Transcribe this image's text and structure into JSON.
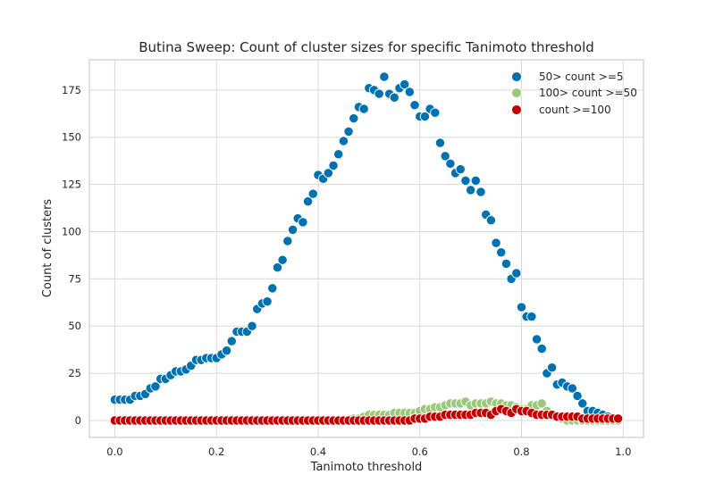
{
  "chart_data": {
    "type": "scatter",
    "title": "Butina Sweep: Count of cluster sizes for specific Tanimoto threshold",
    "xlabel": "Tanimoto threshold",
    "ylabel": "Count of clusters",
    "xlim": [
      -0.05,
      1.04
    ],
    "ylim": [
      -9,
      191
    ],
    "xticks": [
      0.0,
      0.2,
      0.4,
      0.6,
      0.8,
      1.0
    ],
    "xtick_labels": [
      "0.0",
      "0.2",
      "0.4",
      "0.6",
      "0.8",
      "1.0"
    ],
    "yticks": [
      0,
      25,
      50,
      75,
      100,
      125,
      150,
      175
    ],
    "ytick_labels": [
      "0",
      "25",
      "50",
      "75",
      "100",
      "125",
      "150",
      "175"
    ],
    "grid": true,
    "legend_position": "top-right",
    "x": [
      0.0,
      0.01,
      0.02,
      0.03,
      0.04,
      0.05,
      0.06,
      0.07,
      0.08,
      0.09,
      0.1,
      0.11,
      0.12,
      0.13,
      0.14,
      0.15,
      0.16,
      0.17,
      0.18,
      0.19,
      0.2,
      0.21,
      0.22,
      0.23,
      0.24,
      0.25,
      0.26,
      0.27,
      0.28,
      0.29,
      0.3,
      0.31,
      0.32,
      0.33,
      0.34,
      0.35,
      0.36,
      0.37,
      0.38,
      0.39,
      0.4,
      0.41,
      0.42,
      0.43,
      0.44,
      0.45,
      0.46,
      0.47,
      0.48,
      0.49,
      0.5,
      0.51,
      0.52,
      0.53,
      0.54,
      0.55,
      0.56,
      0.57,
      0.58,
      0.59,
      0.6,
      0.61,
      0.62,
      0.63,
      0.64,
      0.65,
      0.66,
      0.67,
      0.68,
      0.69,
      0.7,
      0.71,
      0.72,
      0.73,
      0.74,
      0.75,
      0.76,
      0.77,
      0.78,
      0.79,
      0.8,
      0.81,
      0.82,
      0.83,
      0.84,
      0.85,
      0.86,
      0.87,
      0.88,
      0.89,
      0.9,
      0.91,
      0.92,
      0.93,
      0.94,
      0.95,
      0.96,
      0.97,
      0.98,
      0.99
    ],
    "series": [
      {
        "name": "50> count >=5",
        "color": "#0072b2",
        "values": [
          11,
          11,
          11,
          11,
          13,
          13,
          14,
          17,
          18,
          22,
          22,
          24,
          26,
          26,
          27,
          29,
          32,
          32,
          33,
          33,
          33,
          35,
          37,
          42,
          47,
          47,
          47,
          50,
          59,
          62,
          63,
          70,
          81,
          85,
          95,
          101,
          107,
          105,
          116,
          120,
          130,
          128,
          131,
          135,
          141,
          148,
          153,
          160,
          166,
          165,
          176,
          175,
          173,
          182,
          173,
          171,
          176,
          178,
          174,
          167,
          161,
          161,
          165,
          163,
          147,
          140,
          136,
          131,
          133,
          127,
          122,
          127,
          121,
          109,
          106,
          94,
          89,
          83,
          75,
          78,
          60,
          55,
          55,
          43,
          38,
          25,
          28,
          19,
          20,
          18,
          17,
          13,
          9,
          5,
          5,
          4,
          3,
          2,
          1,
          1
        ]
      },
      {
        "name": "100> count >=50",
        "color": "#9bc97c",
        "values": [
          0,
          0,
          0,
          0,
          0,
          0,
          0,
          0,
          0,
          0,
          0,
          0,
          0,
          0,
          0,
          0,
          0,
          0,
          0,
          0,
          0,
          0,
          0,
          0,
          0,
          0,
          0,
          0,
          0,
          0,
          0,
          0,
          0,
          0,
          0,
          0,
          0,
          0,
          0,
          0,
          0,
          0,
          0,
          0,
          0,
          0,
          0,
          1,
          1,
          2,
          3,
          3,
          3,
          3,
          3,
          4,
          4,
          4,
          4,
          4,
          5,
          6,
          6,
          7,
          7,
          8,
          9,
          9,
          9,
          10,
          8,
          9,
          9,
          9,
          10,
          9,
          9,
          8,
          8,
          7,
          6,
          6,
          8,
          8,
          9,
          5,
          3,
          2,
          1,
          0,
          0,
          0,
          0,
          0,
          0,
          0,
          0,
          0,
          0,
          0
        ]
      },
      {
        "name": "count >=100",
        "color": "#c40000",
        "values": [
          0,
          0,
          0,
          0,
          0,
          0,
          0,
          0,
          0,
          0,
          0,
          0,
          0,
          0,
          0,
          0,
          0,
          0,
          0,
          0,
          0,
          0,
          0,
          0,
          0,
          0,
          0,
          0,
          0,
          0,
          0,
          0,
          0,
          0,
          0,
          0,
          0,
          0,
          0,
          0,
          0,
          0,
          0,
          0,
          0,
          0,
          0,
          0,
          0,
          0,
          0,
          0,
          0,
          0,
          0,
          0,
          0,
          0,
          0,
          1,
          1,
          1,
          2,
          2,
          2,
          3,
          3,
          3,
          3,
          3,
          3,
          4,
          4,
          4,
          3,
          5,
          6,
          5,
          4,
          6,
          5,
          5,
          4,
          3,
          3,
          3,
          3,
          2,
          2,
          2,
          2,
          2,
          1,
          1,
          1,
          1,
          1,
          1,
          1,
          1
        ]
      }
    ]
  }
}
